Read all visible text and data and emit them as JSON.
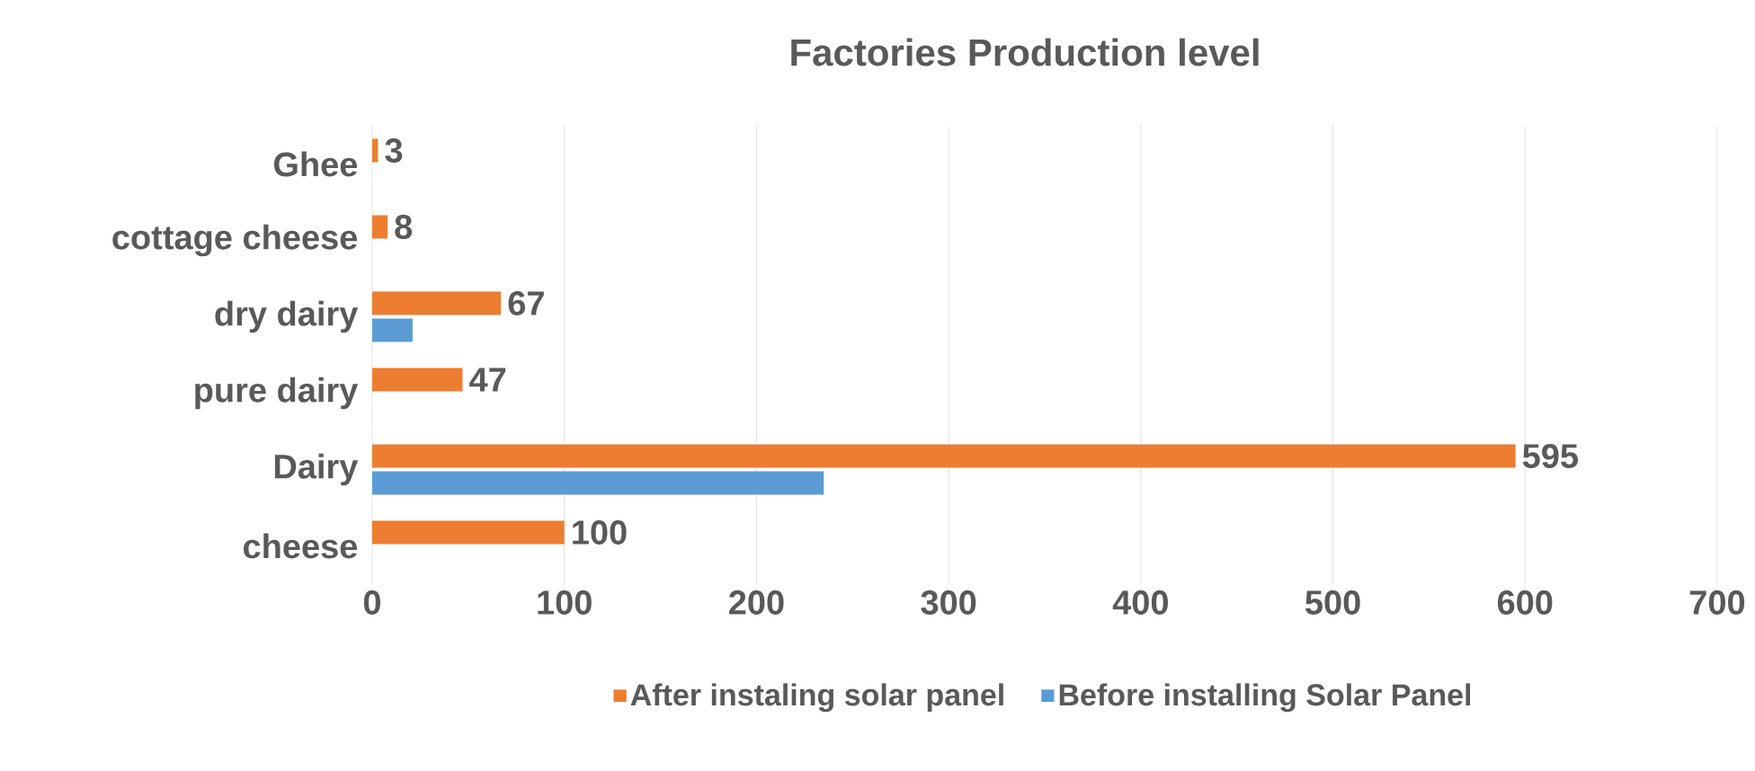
{
  "chart_data": {
    "type": "bar",
    "orientation": "horizontal",
    "title": "Factories Production level",
    "categories": [
      "Ghee",
      "cottage cheese",
      "dry dairy",
      "pure dairy",
      "Dairy",
      "cheese"
    ],
    "series": [
      {
        "name": "After instaling solar panel",
        "color": "#ed7d31",
        "values": [
          3,
          8,
          67,
          47,
          595,
          100
        ],
        "value_labels": [
          "3",
          "8",
          "67",
          "47",
          "595",
          "100"
        ]
      },
      {
        "name": "Before installing Solar Panel",
        "color": "#5b9bd5",
        "values": [
          null,
          null,
          21,
          null,
          235,
          null
        ]
      }
    ],
    "xlim": [
      0,
      700
    ],
    "xticks": [
      0,
      100,
      200,
      300,
      400,
      500,
      600,
      700
    ],
    "grid": "x",
    "legend": "bottom"
  }
}
